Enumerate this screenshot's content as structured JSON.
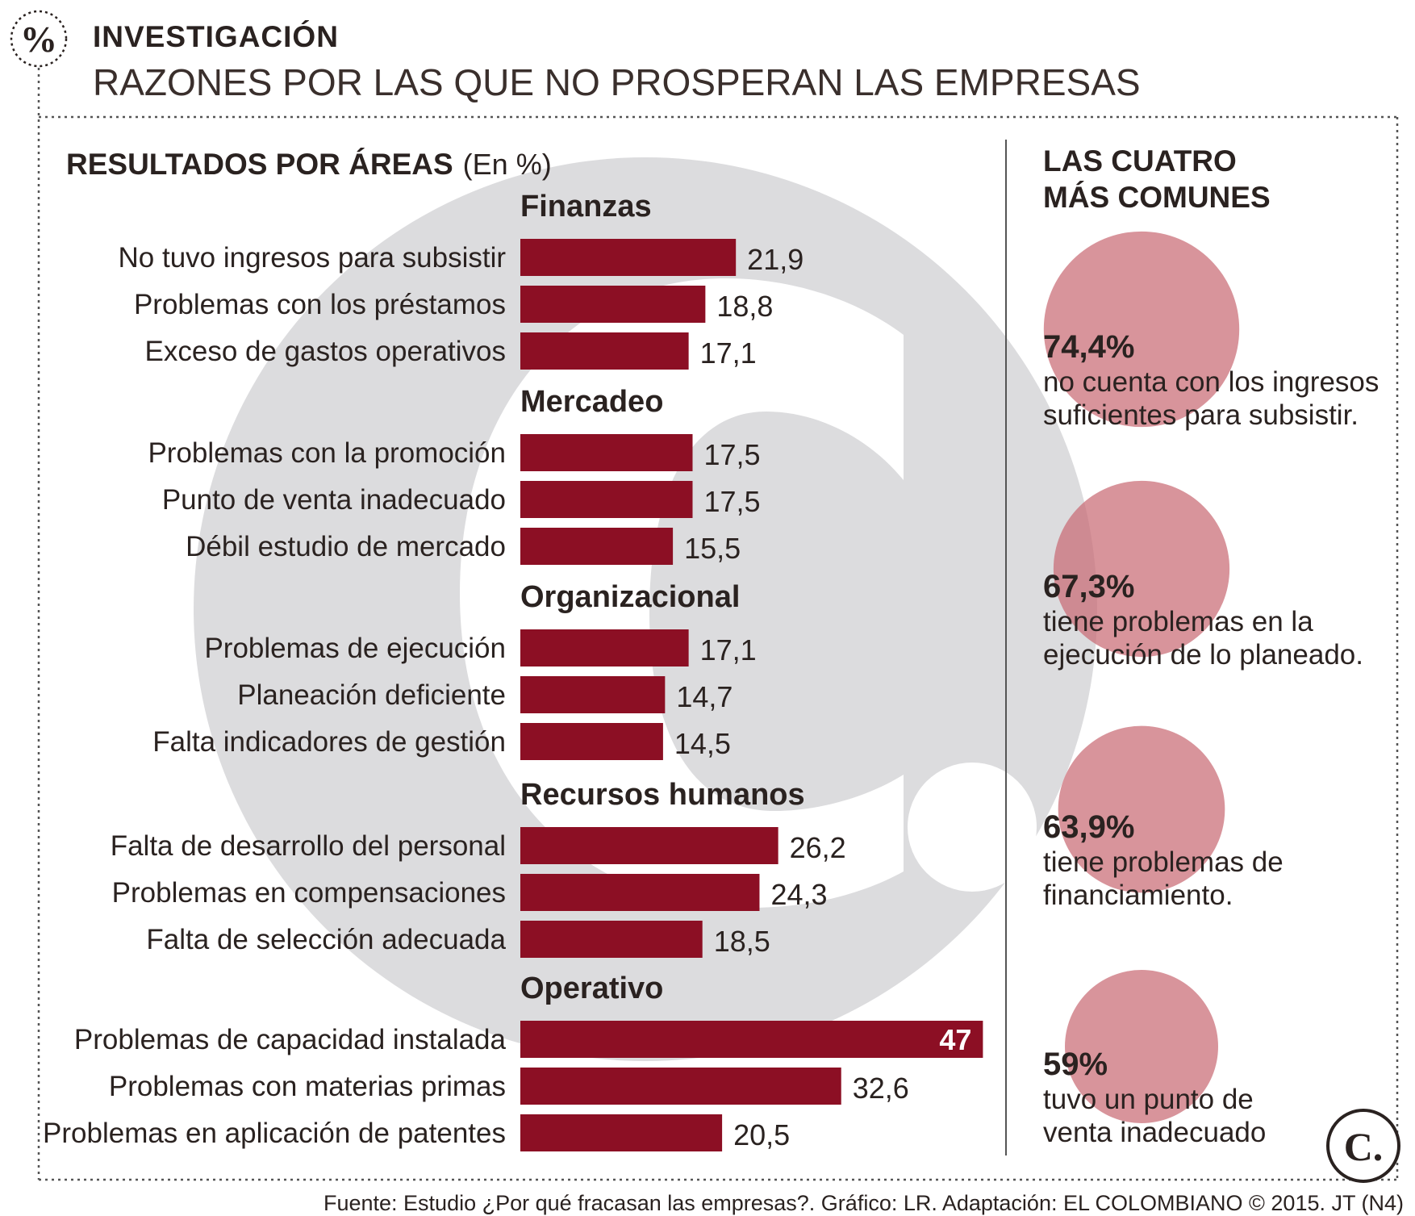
{
  "header": {
    "icon": "percent-icon",
    "kicker": "INVESTIGACIÓN",
    "title": "RAZONES POR LAS QUE NO PROSPERAN LAS EMPRESAS"
  },
  "left": {
    "heading": "RESULTADOS POR ÁREAS",
    "unit": "(En %)"
  },
  "right": {
    "heading_line1": "LAS CUATRO",
    "heading_line2": "MÁS COMUNES",
    "items": [
      {
        "pct": "74,4%",
        "line1": "no cuenta con los ingresos",
        "line2": "suficientes para subsistir.",
        "value": 74.4
      },
      {
        "pct": "67,3%",
        "line1": "tiene problemas en la",
        "line2": "ejecución de lo planeado.",
        "value": 67.3
      },
      {
        "pct": "63,9%",
        "line1": "tiene problemas de",
        "line2": "financiamiento.",
        "value": 63.9
      },
      {
        "pct": "59%",
        "line1": "tuvo un punto de",
        "line2": "venta inadecuado",
        "value": 59
      }
    ]
  },
  "chart_data": {
    "type": "bar",
    "orientation": "horizontal",
    "title": "RESULTADOS POR ÁREAS",
    "unit": "(En %)",
    "groups": [
      {
        "name": "Finanzas",
        "items": [
          {
            "label": "No tuvo ingresos para subsistir",
            "value": 21.9,
            "display": "21,9"
          },
          {
            "label": "Problemas con los préstamos",
            "value": 18.8,
            "display": "18,8"
          },
          {
            "label": "Exceso de gastos operativos",
            "value": 17.1,
            "display": "17,1"
          }
        ]
      },
      {
        "name": "Mercadeo",
        "items": [
          {
            "label": "Problemas con la promoción",
            "value": 17.5,
            "display": "17,5"
          },
          {
            "label": "Punto de venta inadecuado",
            "value": 17.5,
            "display": "17,5"
          },
          {
            "label": "Débil estudio de mercado",
            "value": 15.5,
            "display": "15,5"
          }
        ]
      },
      {
        "name": "Organizacional",
        "items": [
          {
            "label": "Problemas de ejecución",
            "value": 17.1,
            "display": "17,1"
          },
          {
            "label": "Planeación deficiente",
            "value": 14.7,
            "display": "14,7"
          },
          {
            "label": "Falta indicadores de gestión",
            "value": 14.5,
            "display": "14,5"
          }
        ]
      },
      {
        "name": "Recursos humanos",
        "items": [
          {
            "label": "Falta de desarrollo del personal",
            "value": 26.2,
            "display": "26,2"
          },
          {
            "label": "Problemas en compensaciones",
            "value": 24.3,
            "display": "24,3"
          },
          {
            "label": "Falta de selección adecuada",
            "value": 18.5,
            "display": "18,5"
          }
        ]
      },
      {
        "name": "Operativo",
        "items": [
          {
            "label": "Problemas de capacidad instalada",
            "value": 47,
            "display": "47"
          },
          {
            "label": "Problemas con materias primas",
            "value": 32.6,
            "display": "32,6"
          },
          {
            "label": "Problemas en aplicación de patentes",
            "value": 20.5,
            "display": "20,5"
          }
        ]
      }
    ],
    "bar_color": "#8c0f24",
    "grid": false
  },
  "colors": {
    "bar": "#8c0f24",
    "bubble": "#c96b75",
    "watermark": "#dcdcde",
    "text": "#2a2220"
  },
  "footer": {
    "source": "Fuente: Estudio ¿Por qué fracasan las empresas?. Gráfico: LR. Adaptación: EL COLOMBIANO © 2015. JT (N4)",
    "logo": "C."
  }
}
